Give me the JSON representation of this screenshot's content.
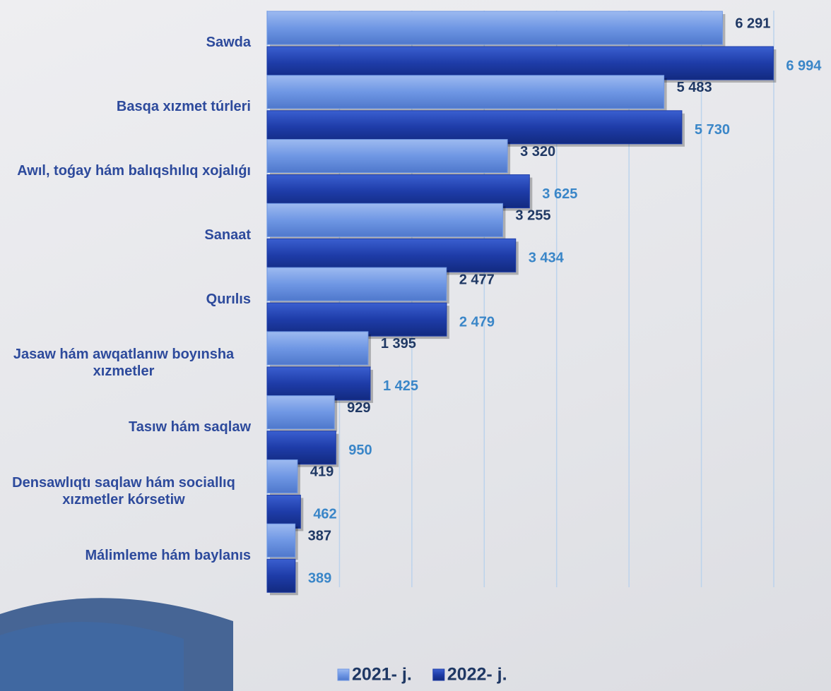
{
  "chart_data": {
    "type": "bar",
    "orientation": "horizontal",
    "categories": [
      "Sawda",
      "Basqa xızmet túrleri",
      "Awıl, toǵay hám balıqshılıq xojalıǵı",
      "Sanaat",
      "Qurılıs",
      "Jasaw hám awqatlanıw boyınsha xızmetler",
      "Tasıw hám saqlaw",
      "Densawlıqtı saqlaw hám sociallıq xızmetler kórsetiw",
      "Málimleme hám baylanıs"
    ],
    "series": [
      {
        "name": "2021- j.",
        "color": "#6f97e4",
        "label_color": "#1f3864",
        "values": [
          6291,
          5483,
          3320,
          3255,
          2477,
          1395,
          929,
          419,
          387
        ],
        "value_labels": [
          "6 291",
          "5 483",
          "3 320",
          "3 255",
          "2 477",
          "1 395",
          "929",
          "419",
          "387"
        ]
      },
      {
        "name": "2022- j.",
        "color": "#1e3ca8",
        "label_color": "#3a86c8",
        "values": [
          6994,
          5730,
          3625,
          3434,
          2479,
          1425,
          950,
          462,
          389
        ],
        "value_labels": [
          "6 994",
          "5 730",
          "3 625",
          "3 434",
          "2 479",
          "1 425",
          "950",
          "462",
          "389"
        ]
      }
    ],
    "xlim": [
      0,
      7000
    ],
    "xticks": [
      0,
      1000,
      2000,
      3000,
      4000,
      5000,
      6000,
      7000
    ],
    "grid": true
  }
}
